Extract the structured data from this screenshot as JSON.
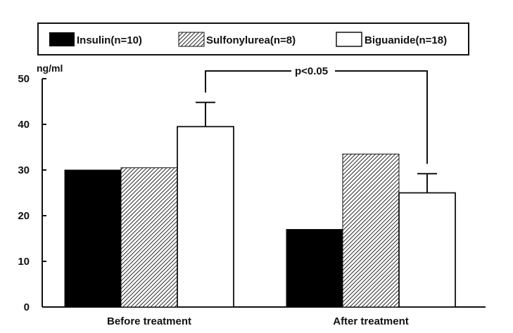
{
  "chart_data": {
    "type": "bar",
    "ylabel": "ng/ml",
    "ylim": [
      0,
      50
    ],
    "yticks": [
      "0",
      "10",
      "20",
      "30",
      "40",
      "50"
    ],
    "categories": [
      "Before treatment",
      "After treatment"
    ],
    "series": [
      {
        "name": "Insulin(n=10)",
        "pattern": "solid",
        "color": "#000000",
        "values": [
          30,
          17
        ],
        "errors": [
          null,
          null
        ]
      },
      {
        "name": "Sulfonylurea(n=8)",
        "pattern": "hatch",
        "color": "#555555",
        "values": [
          30.5,
          33.5
        ],
        "errors": [
          null,
          null
        ]
      },
      {
        "name": "Biguanide(n=18)",
        "pattern": "open",
        "color": "#ffffff",
        "values": [
          39.5,
          25
        ],
        "errors": [
          5.3,
          4.2
        ]
      }
    ],
    "annotation": {
      "text": "p<0.05",
      "series": "Biguanide(n=18)"
    },
    "legend_placement": "top"
  }
}
